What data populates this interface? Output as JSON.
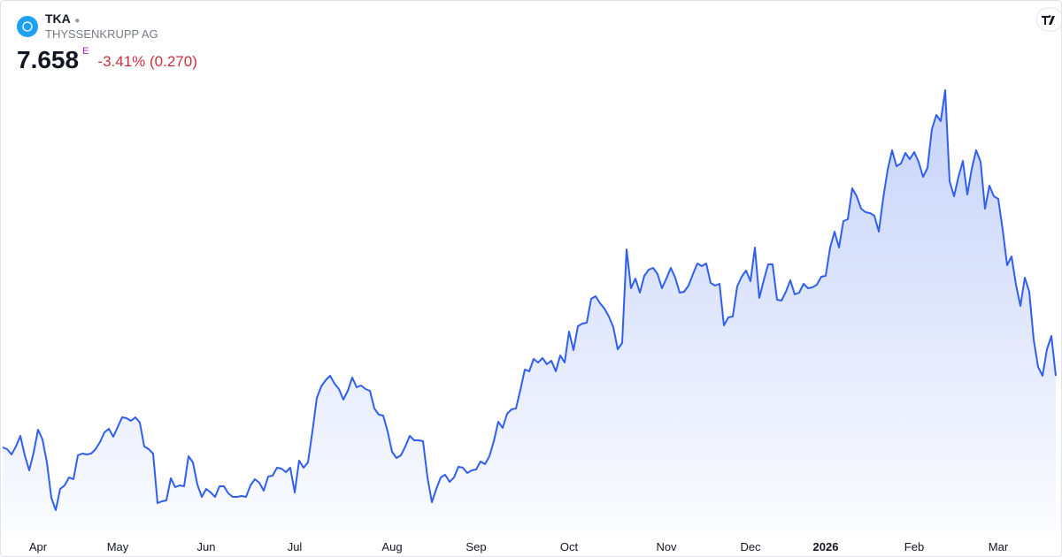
{
  "header": {
    "symbol": "TKA",
    "name": "THYSSENKRUPP AG",
    "price": "7.658",
    "exchange_flag": "E",
    "change": "-3.41% (0.270)"
  },
  "chart_data": {
    "type": "area",
    "color": "#2f5fec",
    "values": [
      6.04,
      6.0,
      5.88,
      6.06,
      6.3,
      5.86,
      5.52,
      5.92,
      6.44,
      6.22,
      5.7,
      4.9,
      4.62,
      5.1,
      5.18,
      5.36,
      5.32,
      5.86,
      5.9,
      5.88,
      5.9,
      6.0,
      6.16,
      6.38,
      6.46,
      6.28,
      6.5,
      6.72,
      6.7,
      6.64,
      6.72,
      6.6,
      6.06,
      6.0,
      5.9,
      4.78,
      4.82,
      4.84,
      5.34,
      5.14,
      5.18,
      5.16,
      5.84,
      5.7,
      5.2,
      4.92,
      5.1,
      5.02,
      4.92,
      5.16,
      5.16,
      5.0,
      4.92,
      4.92,
      4.94,
      4.92,
      5.18,
      5.32,
      5.24,
      5.06,
      5.38,
      5.4,
      5.58,
      5.56,
      5.48,
      5.58,
      5.02,
      5.74,
      5.58,
      5.7,
      6.4,
      7.16,
      7.42,
      7.56,
      7.66,
      7.48,
      7.36,
      7.12,
      7.32,
      7.62,
      7.4,
      7.44,
      7.36,
      7.32,
      6.92,
      6.78,
      6.76,
      6.4,
      5.94,
      5.8,
      5.86,
      6.06,
      6.3,
      6.2,
      6.2,
      6.18,
      5.36,
      4.8,
      5.1,
      5.36,
      5.42,
      5.26,
      5.36,
      5.6,
      5.58,
      5.46,
      5.52,
      5.54,
      5.72,
      5.66,
      5.84,
      6.18,
      6.62,
      6.48,
      6.8,
      6.9,
      6.92,
      7.34,
      7.8,
      7.76,
      8.04,
      7.96,
      8.06,
      7.92,
      8.0,
      7.76,
      8.12,
      7.96,
      8.66,
      8.24,
      8.78,
      8.84,
      8.86,
      9.4,
      9.46,
      9.3,
      9.18,
      9.0,
      8.76,
      8.26,
      8.4,
      10.52,
      9.64,
      9.86,
      9.54,
      9.92,
      10.06,
      10.1,
      9.96,
      9.64,
      9.86,
      10.1,
      9.88,
      9.54,
      9.56,
      9.7,
      9.96,
      10.2,
      10.14,
      10.2,
      9.76,
      9.7,
      9.74,
      8.8,
      8.98,
      9.0,
      9.68,
      9.9,
      10.04,
      9.8,
      10.56,
      9.42,
      9.82,
      10.18,
      10.18,
      9.38,
      9.36,
      9.56,
      9.82,
      9.5,
      9.54,
      9.74,
      9.64,
      9.66,
      9.72,
      9.9,
      9.92,
      10.56,
      10.92,
      10.56,
      11.16,
      11.2,
      11.9,
      11.72,
      11.44,
      11.36,
      11.34,
      11.28,
      10.92,
      11.68,
      12.32,
      12.76,
      12.4,
      12.46,
      12.7,
      12.56,
      12.72,
      12.5,
      12.16,
      12.36,
      13.24,
      13.56,
      13.42,
      14.12,
      12.06,
      11.72,
      12.16,
      12.52,
      11.76,
      12.34,
      12.76,
      12.5,
      11.44,
      11.96,
      11.72,
      11.66,
      10.96,
      10.16,
      10.36,
      9.72,
      9.24,
      9.88,
      9.56,
      8.48,
      7.86,
      7.66,
      8.26,
      8.56,
      7.658
    ],
    "xlim": [
      0,
      238
    ],
    "xticks": [
      {
        "value": 8,
        "label": "Apr"
      },
      {
        "value": 26,
        "label": "May"
      },
      {
        "value": 46,
        "label": "Jun"
      },
      {
        "value": 66,
        "label": "Jul"
      },
      {
        "value": 88,
        "label": "Aug"
      },
      {
        "value": 107,
        "label": "Sep"
      },
      {
        "value": 128,
        "label": "Oct"
      },
      {
        "value": 150,
        "label": "Nov"
      },
      {
        "value": 169,
        "label": "Dec"
      },
      {
        "value": 186,
        "label": "2026"
      },
      {
        "value": 206,
        "label": "Feb"
      },
      {
        "value": 225,
        "label": "Mar"
      }
    ],
    "bold_xticks": [
      "2026"
    ],
    "ylim": [
      4.2,
      14.4
    ]
  }
}
